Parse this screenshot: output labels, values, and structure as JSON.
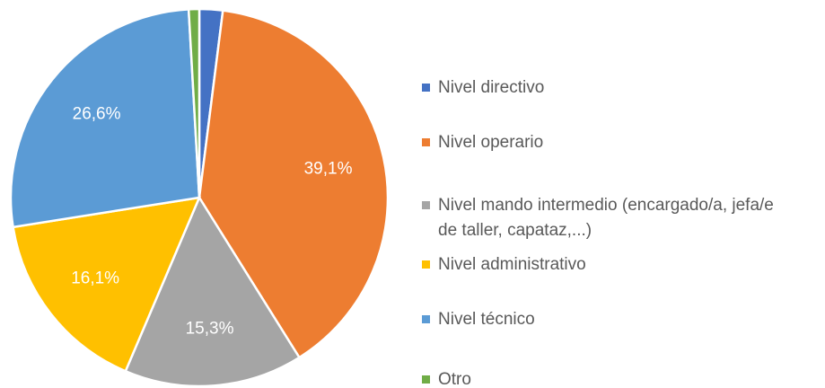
{
  "chart_data": {
    "type": "pie",
    "categories": [
      "Nivel directivo",
      "Nivel operario",
      "Nivel mando intermedio (encargado/a, jefa/e de taller, capataz,...)",
      "Nivel administrativo",
      "Nivel técnico",
      "Otro"
    ],
    "values": [
      2.0,
      39.1,
      15.3,
      16.1,
      26.6,
      0.9
    ],
    "value_labels": [
      null,
      "39,1%",
      "15,3%",
      "16,1%",
      "26,6%",
      null
    ],
    "colors": [
      "#4472c4",
      "#ed7d31",
      "#a5a5a5",
      "#ffc000",
      "#5b9bd5",
      "#70ad47"
    ],
    "legend": "right"
  }
}
